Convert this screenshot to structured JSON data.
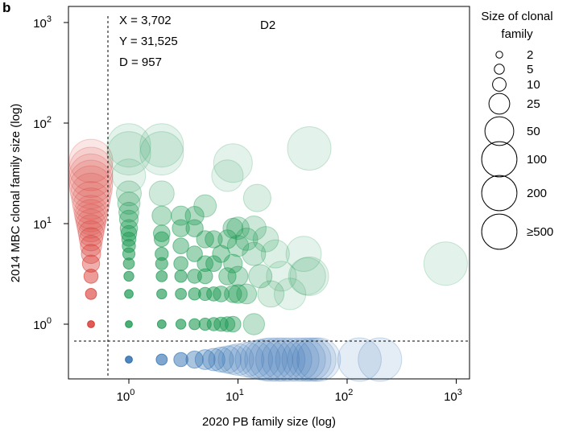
{
  "panel_label": "b",
  "chart_data": {
    "type": "scatter",
    "scale": "log-log",
    "xlabel": "2020 PB family size (log)",
    "ylabel": "2014 MBC clonal family size (log)",
    "x_ticks": [
      {
        "base": "10",
        "exp": "0",
        "value": 1
      },
      {
        "base": "10",
        "exp": "1",
        "value": 10
      },
      {
        "base": "10",
        "exp": "2",
        "value": 100
      },
      {
        "base": "10",
        "exp": "3",
        "value": 1000
      }
    ],
    "y_ticks": [
      {
        "base": "10",
        "exp": "0",
        "value": 1
      },
      {
        "base": "10",
        "exp": "1",
        "value": 10
      },
      {
        "base": "10",
        "exp": "2",
        "value": 100
      },
      {
        "base": "10",
        "exp": "3",
        "value": 1000
      }
    ],
    "xlim": [
      0.32,
      1350
    ],
    "ylim": [
      0.24,
      1200
    ],
    "grid": false,
    "annotations": {
      "x_count": "X = 3,702",
      "y_count": "Y = 31,525",
      "d_count": "D = 957",
      "donor": "D2"
    },
    "colors": {
      "x_only": "#2166ac",
      "y_only": "#d62f27",
      "both": "#1a9850"
    },
    "series": [
      {
        "key": "y_only",
        "points": [
          {
            "y": 1,
            "s": 2
          },
          {
            "y": 2,
            "s": 5
          },
          {
            "y": 3,
            "s": 8
          },
          {
            "y": 4,
            "s": 12
          },
          {
            "y": 5,
            "s": 15
          },
          {
            "y": 6,
            "s": 18
          },
          {
            "y": 7,
            "s": 22
          },
          {
            "y": 8,
            "s": 26
          },
          {
            "y": 9,
            "s": 30
          },
          {
            "y": 10,
            "s": 34
          },
          {
            "y": 11,
            "s": 38
          },
          {
            "y": 12,
            "s": 42
          },
          {
            "y": 13,
            "s": 46
          },
          {
            "y": 15,
            "s": 52
          },
          {
            "y": 17,
            "s": 58
          },
          {
            "y": 20,
            "s": 66
          },
          {
            "y": 23,
            "s": 74
          },
          {
            "y": 26,
            "s": 84
          },
          {
            "y": 30,
            "s": 96
          },
          {
            "y": 35,
            "s": 110
          },
          {
            "y": 42,
            "s": 130
          }
        ]
      },
      {
        "key": "x_only",
        "points": [
          {
            "x": 1,
            "s": 2
          },
          {
            "x": 2,
            "s": 5
          },
          {
            "x": 3,
            "s": 8
          },
          {
            "x": 4,
            "s": 12
          },
          {
            "x": 5,
            "s": 16
          },
          {
            "x": 6,
            "s": 20
          },
          {
            "x": 7,
            "s": 25
          },
          {
            "x": 8,
            "s": 30
          },
          {
            "x": 9,
            "s": 35
          },
          {
            "x": 10,
            "s": 40
          },
          {
            "x": 12,
            "s": 48
          },
          {
            "x": 14,
            "s": 56
          },
          {
            "x": 16,
            "s": 64
          },
          {
            "x": 18,
            "s": 72
          },
          {
            "x": 20,
            "s": 80
          },
          {
            "x": 23,
            "s": 90
          },
          {
            "x": 26,
            "s": 100
          },
          {
            "x": 30,
            "s": 115
          },
          {
            "x": 35,
            "s": 130
          },
          {
            "x": 40,
            "s": 150
          },
          {
            "x": 45,
            "s": 170
          },
          {
            "x": 50,
            "s": 190
          },
          {
            "x": 55,
            "s": 210
          },
          {
            "x": 130,
            "s": 450
          },
          {
            "x": 200,
            "s": 500
          }
        ]
      },
      {
        "key": "both",
        "points": [
          {
            "x": 1,
            "y": 1,
            "s": 2
          },
          {
            "x": 1,
            "y": 2,
            "s": 3
          },
          {
            "x": 1,
            "y": 3,
            "s": 4
          },
          {
            "x": 1,
            "y": 4,
            "s": 5
          },
          {
            "x": 1,
            "y": 5,
            "s": 6
          },
          {
            "x": 1,
            "y": 6,
            "s": 7
          },
          {
            "x": 1,
            "y": 7,
            "s": 8
          },
          {
            "x": 1,
            "y": 8,
            "s": 10
          },
          {
            "x": 1,
            "y": 9,
            "s": 12
          },
          {
            "x": 1,
            "y": 11,
            "s": 14
          },
          {
            "x": 1,
            "y": 13,
            "s": 16
          },
          {
            "x": 1,
            "y": 16,
            "s": 20
          },
          {
            "x": 1,
            "y": 20,
            "s": 25
          },
          {
            "x": 1,
            "y": 30,
            "s": 45
          },
          {
            "x": 1,
            "y": 50,
            "s": 90
          },
          {
            "x": 1,
            "y": 60,
            "s": 110
          },
          {
            "x": 2,
            "y": 1,
            "s": 3
          },
          {
            "x": 2,
            "y": 2,
            "s": 4
          },
          {
            "x": 2,
            "y": 3,
            "s": 5
          },
          {
            "x": 2,
            "y": 4,
            "s": 6
          },
          {
            "x": 2,
            "y": 5,
            "s": 7
          },
          {
            "x": 2,
            "y": 7,
            "s": 9
          },
          {
            "x": 2,
            "y": 8,
            "s": 11
          },
          {
            "x": 2,
            "y": 12,
            "s": 15
          },
          {
            "x": 2,
            "y": 20,
            "s": 25
          },
          {
            "x": 2,
            "y": 50,
            "s": 100
          },
          {
            "x": 2,
            "y": 60,
            "s": 120
          },
          {
            "x": 3,
            "y": 1,
            "s": 4
          },
          {
            "x": 3,
            "y": 2,
            "s": 5
          },
          {
            "x": 3,
            "y": 3,
            "s": 6
          },
          {
            "x": 3,
            "y": 4,
            "s": 8
          },
          {
            "x": 3,
            "y": 6,
            "s": 10
          },
          {
            "x": 3,
            "y": 9,
            "s": 12
          },
          {
            "x": 3,
            "y": 12,
            "s": 15
          },
          {
            "x": 4,
            "y": 1,
            "s": 5
          },
          {
            "x": 4,
            "y": 2,
            "s": 6
          },
          {
            "x": 4,
            "y": 3,
            "s": 8
          },
          {
            "x": 4,
            "y": 5,
            "s": 10
          },
          {
            "x": 4,
            "y": 9,
            "s": 12
          },
          {
            "x": 4,
            "y": 12,
            "s": 14
          },
          {
            "x": 5,
            "y": 1,
            "s": 6
          },
          {
            "x": 5,
            "y": 2,
            "s": 7
          },
          {
            "x": 5,
            "y": 3,
            "s": 9
          },
          {
            "x": 5,
            "y": 4,
            "s": 10
          },
          {
            "x": 5,
            "y": 7,
            "s": 12
          },
          {
            "x": 5,
            "y": 15,
            "s": 20
          },
          {
            "x": 6,
            "y": 1,
            "s": 7
          },
          {
            "x": 6,
            "y": 2,
            "s": 8
          },
          {
            "x": 6,
            "y": 4,
            "s": 10
          },
          {
            "x": 6,
            "y": 7,
            "s": 12
          },
          {
            "x": 7,
            "y": 1,
            "s": 8
          },
          {
            "x": 7,
            "y": 2,
            "s": 10
          },
          {
            "x": 7,
            "y": 5,
            "s": 12
          },
          {
            "x": 8,
            "y": 1,
            "s": 9
          },
          {
            "x": 8,
            "y": 3,
            "s": 12
          },
          {
            "x": 8,
            "y": 7,
            "s": 14
          },
          {
            "x": 8,
            "y": 30,
            "s": 40
          },
          {
            "x": 9,
            "y": 1,
            "s": 10
          },
          {
            "x": 9,
            "y": 2,
            "s": 12
          },
          {
            "x": 9,
            "y": 4,
            "s": 14
          },
          {
            "x": 9,
            "y": 9,
            "s": 16
          },
          {
            "x": 9,
            "y": 40,
            "s": 60
          },
          {
            "x": 10,
            "y": 2,
            "s": 14
          },
          {
            "x": 10,
            "y": 3,
            "s": 16
          },
          {
            "x": 10,
            "y": 6,
            "s": 18
          },
          {
            "x": 10,
            "y": 9,
            "s": 20
          },
          {
            "x": 12,
            "y": 2,
            "s": 16
          },
          {
            "x": 12,
            "y": 7,
            "s": 20
          },
          {
            "x": 14,
            "y": 1,
            "s": 18
          },
          {
            "x": 14,
            "y": 5,
            "s": 22
          },
          {
            "x": 14,
            "y": 9,
            "s": 24
          },
          {
            "x": 15,
            "y": 18,
            "s": 30
          },
          {
            "x": 16,
            "y": 3,
            "s": 22
          },
          {
            "x": 18,
            "y": 7,
            "s": 26
          },
          {
            "x": 20,
            "y": 2,
            "s": 28
          },
          {
            "x": 22,
            "y": 5,
            "s": 32
          },
          {
            "x": 25,
            "y": 3,
            "s": 36
          },
          {
            "x": 30,
            "y": 2,
            "s": 40
          },
          {
            "x": 40,
            "y": 5,
            "s": 50
          },
          {
            "x": 43,
            "y": 3,
            "s": 55
          },
          {
            "x": 45,
            "y": 3,
            "s": 60
          },
          {
            "x": 45,
            "y": 56,
            "s": 120
          },
          {
            "x": 800,
            "y": 4,
            "s": 500
          }
        ]
      }
    ]
  },
  "legend": {
    "title_line1": "Size of clonal",
    "title_line2": "family",
    "entries": [
      {
        "label": "2",
        "s": 2
      },
      {
        "label": "5",
        "s": 5
      },
      {
        "label": "10",
        "s": 10
      },
      {
        "label": "25",
        "s": 25
      },
      {
        "label": "50",
        "s": 50
      },
      {
        "label": "100",
        "s": 100
      },
      {
        "label": "200",
        "s": 200
      },
      {
        "label": "≥500",
        "s": 500
      }
    ]
  }
}
